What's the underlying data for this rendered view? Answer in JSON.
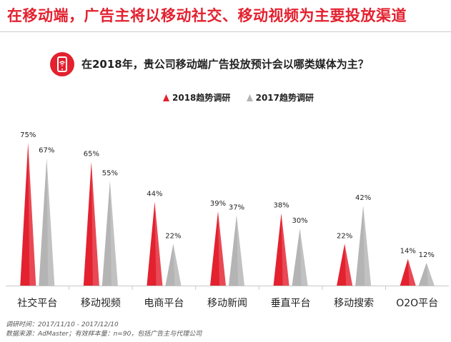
{
  "headline": "在移动端，广告主将以移动社交、移动视频为主要投放渠道",
  "question": "在2018年，贵公司移动端广告投放预计会以哪类媒体为主？",
  "icon": "mobile-phone-wifi-icon",
  "colors": {
    "accent": "#e3212f",
    "series2018": "#e3212f",
    "series2017": "#b4b4b4"
  },
  "footnotes": {
    "survey_time": "调研时间：2017/11/10 - 2017/12/10",
    "source": "数据来源：AdMaster；有效样本量：n=90，包括广告主与代理公司"
  },
  "chart_data": {
    "type": "bar",
    "categories": [
      "社交平台",
      "移动视频",
      "电商平台",
      "移动新闻",
      "垂直平台",
      "移动搜索",
      "O2O平台"
    ],
    "series": [
      {
        "name": "2018趋势调研",
        "values": [
          75,
          65,
          44,
          39,
          38,
          22,
          14
        ],
        "labels": [
          "75%",
          "65%",
          "44%",
          "39%",
          "38%",
          "22%",
          "14%"
        ]
      },
      {
        "name": "2017趋势调研",
        "values": [
          67,
          55,
          22,
          37,
          30,
          42,
          12
        ],
        "labels": [
          "67%",
          "55%",
          "22%",
          "37%",
          "30%",
          "42%",
          "12%"
        ]
      }
    ],
    "ylim": [
      0,
      75
    ],
    "grid": false,
    "legend": "top-center",
    "unit": "%"
  }
}
